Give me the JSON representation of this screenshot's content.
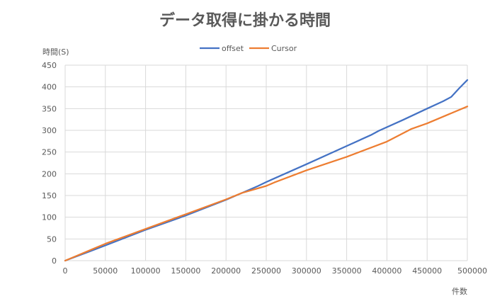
{
  "chart_data": {
    "type": "line",
    "title": "データ取得に掛かる時間",
    "xlabel": "件数",
    "ylabel": "時間(S)",
    "xlim": [
      0,
      500000
    ],
    "ylim": [
      0,
      450
    ],
    "xticks": [
      "0",
      "50000",
      "100000",
      "150000",
      "200000",
      "250000",
      "300000",
      "350000",
      "400000",
      "450000",
      "500000"
    ],
    "yticks": [
      "0",
      "50",
      "100",
      "150",
      "200",
      "250",
      "300",
      "350",
      "400",
      "450"
    ],
    "grid": true,
    "legend_position": "top",
    "series": [
      {
        "name": "offset",
        "color": "#4472C4",
        "x": [
          0,
          50000,
          100000,
          120000,
          150000,
          200000,
          240000,
          250000,
          300000,
          350000,
          380000,
          390000,
          420000,
          450000,
          470000,
          480000,
          490000,
          500000
        ],
        "y": [
          0,
          35,
          71,
          84,
          104,
          140,
          172,
          181,
          222,
          264,
          289,
          299,
          324,
          350,
          367,
          377,
          397,
          416
        ]
      },
      {
        "name": "Cursor",
        "color": "#ED7D31",
        "x": [
          0,
          50000,
          100000,
          150000,
          200000,
          220000,
          250000,
          260000,
          300000,
          350000,
          400000,
          430000,
          450000,
          500000
        ],
        "y": [
          0,
          39,
          73,
          107,
          141,
          156,
          172,
          180,
          208,
          239,
          274,
          303,
          316,
          355
        ]
      }
    ]
  }
}
